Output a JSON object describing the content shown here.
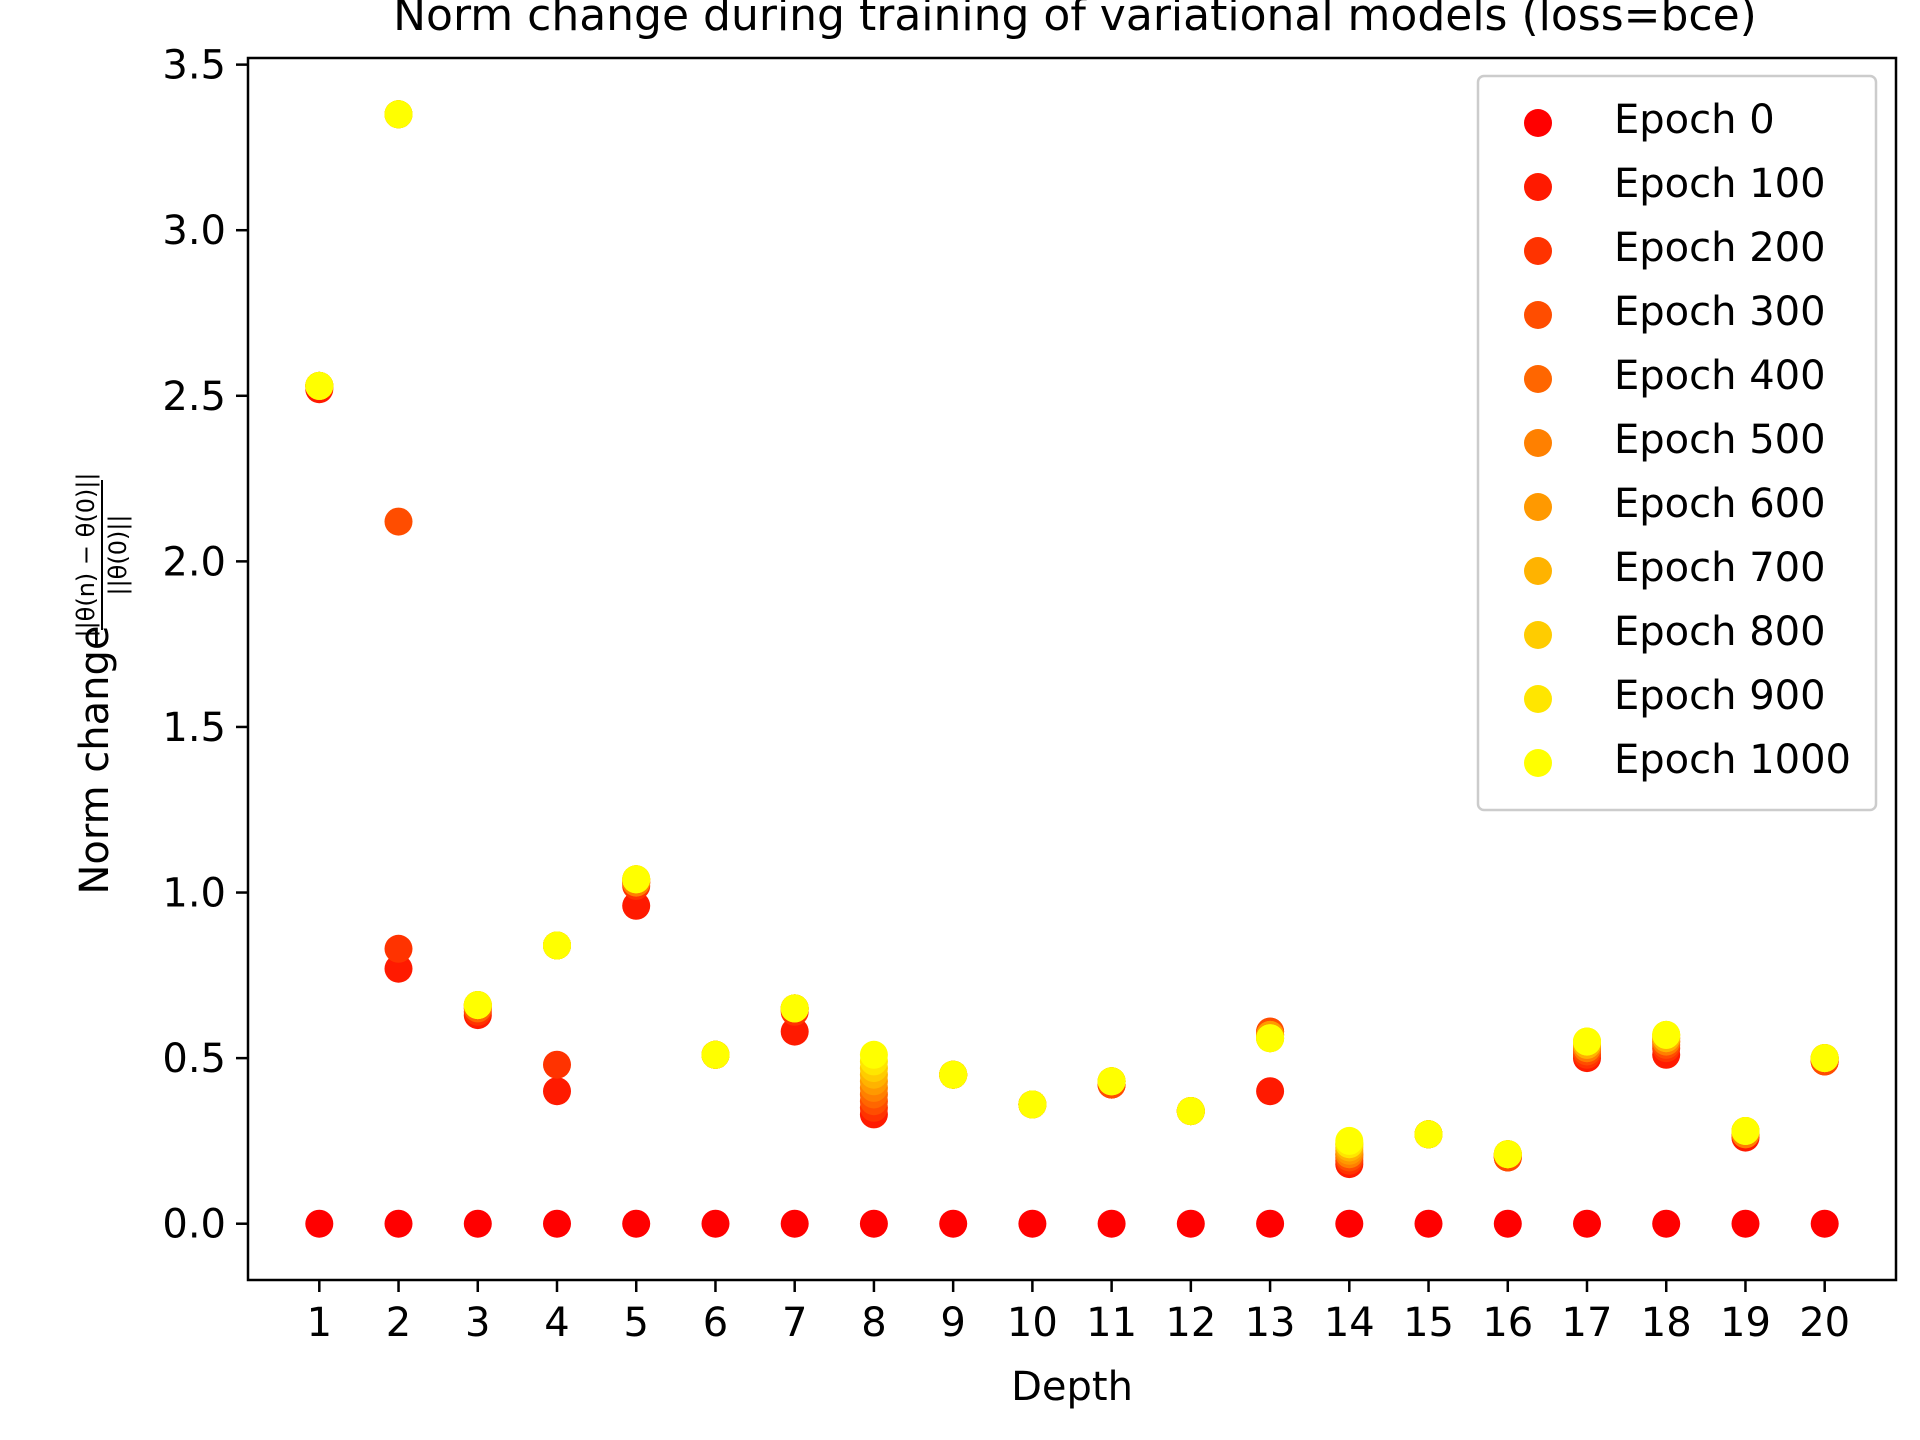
{
  "chart_data": {
    "type": "scatter",
    "title": "Norm change during training of variational models (loss=bce)",
    "xlabel": "Depth",
    "ylabel_prefix": "Norm change",
    "ylabel_numerator": "||θ(n) − θ(0)||",
    "ylabel_denominator": "||θ(0)||",
    "xlim": [
      0.1,
      20.9
    ],
    "ylim": [
      -0.17,
      3.52
    ],
    "x_ticks": [
      "1",
      "2",
      "3",
      "4",
      "5",
      "6",
      "7",
      "8",
      "9",
      "10",
      "11",
      "12",
      "13",
      "14",
      "15",
      "16",
      "17",
      "18",
      "19",
      "20"
    ],
    "y_ticks": [
      "0.0",
      "0.5",
      "1.0",
      "1.5",
      "2.0",
      "2.5",
      "3.0",
      "3.5"
    ],
    "grid": false,
    "legend_position": "top-right",
    "x": [
      1,
      2,
      3,
      4,
      5,
      6,
      7,
      8,
      9,
      10,
      11,
      12,
      13,
      14,
      15,
      16,
      17,
      18,
      19,
      20
    ],
    "series": [
      {
        "name": "Epoch 0",
        "color": "#ff0000",
        "values": [
          0,
          0,
          0,
          0,
          0,
          0,
          0,
          0,
          0,
          0,
          0,
          0,
          0,
          0,
          0,
          0,
          0,
          0,
          0,
          0
        ]
      },
      {
        "name": "Epoch 100",
        "color": "#ff1a00",
        "values": [
          2.52,
          0.77,
          0.63,
          0.4,
          0.96,
          0.51,
          0.58,
          0.33,
          0.45,
          0.36,
          0.42,
          0.34,
          0.4,
          0.18,
          0.27,
          0.2,
          0.5,
          0.51,
          0.26,
          0.49
        ]
      },
      {
        "name": "Epoch 200",
        "color": "#ff3300",
        "values": [
          2.53,
          0.83,
          0.64,
          0.48,
          1.02,
          0.51,
          0.64,
          0.35,
          0.45,
          0.36,
          0.42,
          0.34,
          0.58,
          0.19,
          0.27,
          0.2,
          0.51,
          0.53,
          0.27,
          0.49
        ]
      },
      {
        "name": "Epoch 300",
        "color": "#ff4d00",
        "values": [
          2.53,
          2.12,
          0.65,
          0.84,
          1.03,
          0.51,
          0.65,
          0.37,
          0.45,
          0.36,
          0.42,
          0.34,
          0.58,
          0.2,
          0.27,
          0.2,
          0.52,
          0.54,
          0.27,
          0.49
        ]
      },
      {
        "name": "Epoch 400",
        "color": "#ff6600",
        "values": [
          2.53,
          3.35,
          0.65,
          0.84,
          1.03,
          0.51,
          0.65,
          0.39,
          0.45,
          0.36,
          0.43,
          0.34,
          0.57,
          0.21,
          0.27,
          0.21,
          0.53,
          0.55,
          0.27,
          0.5
        ]
      },
      {
        "name": "Epoch 500",
        "color": "#ff8000",
        "values": [
          2.53,
          3.35,
          0.66,
          0.84,
          1.03,
          0.51,
          0.65,
          0.41,
          0.45,
          0.36,
          0.43,
          0.34,
          0.57,
          0.21,
          0.27,
          0.21,
          0.53,
          0.55,
          0.27,
          0.5
        ]
      },
      {
        "name": "Epoch 600",
        "color": "#ff9900",
        "values": [
          2.53,
          3.35,
          0.66,
          0.84,
          1.04,
          0.51,
          0.65,
          0.43,
          0.45,
          0.36,
          0.43,
          0.34,
          0.57,
          0.22,
          0.27,
          0.21,
          0.54,
          0.56,
          0.28,
          0.5
        ]
      },
      {
        "name": "Epoch 700",
        "color": "#ffb300",
        "values": [
          2.53,
          3.35,
          0.66,
          0.84,
          1.04,
          0.51,
          0.65,
          0.45,
          0.45,
          0.36,
          0.43,
          0.34,
          0.56,
          0.23,
          0.27,
          0.21,
          0.54,
          0.56,
          0.28,
          0.5
        ]
      },
      {
        "name": "Epoch 800",
        "color": "#ffcc00",
        "values": [
          2.53,
          3.35,
          0.66,
          0.84,
          1.04,
          0.51,
          0.65,
          0.47,
          0.45,
          0.36,
          0.43,
          0.34,
          0.56,
          0.24,
          0.27,
          0.21,
          0.55,
          0.57,
          0.28,
          0.5
        ]
      },
      {
        "name": "Epoch 900",
        "color": "#ffe600",
        "values": [
          2.53,
          3.35,
          0.66,
          0.84,
          1.04,
          0.51,
          0.65,
          0.49,
          0.45,
          0.36,
          0.43,
          0.34,
          0.56,
          0.24,
          0.27,
          0.21,
          0.55,
          0.57,
          0.28,
          0.5
        ]
      },
      {
        "name": "Epoch 1000",
        "color": "#ffff00",
        "values": [
          2.53,
          3.35,
          0.66,
          0.84,
          1.04,
          0.51,
          0.65,
          0.51,
          0.45,
          0.36,
          0.43,
          0.34,
          0.56,
          0.25,
          0.27,
          0.21,
          0.55,
          0.57,
          0.28,
          0.5
        ]
      }
    ]
  }
}
